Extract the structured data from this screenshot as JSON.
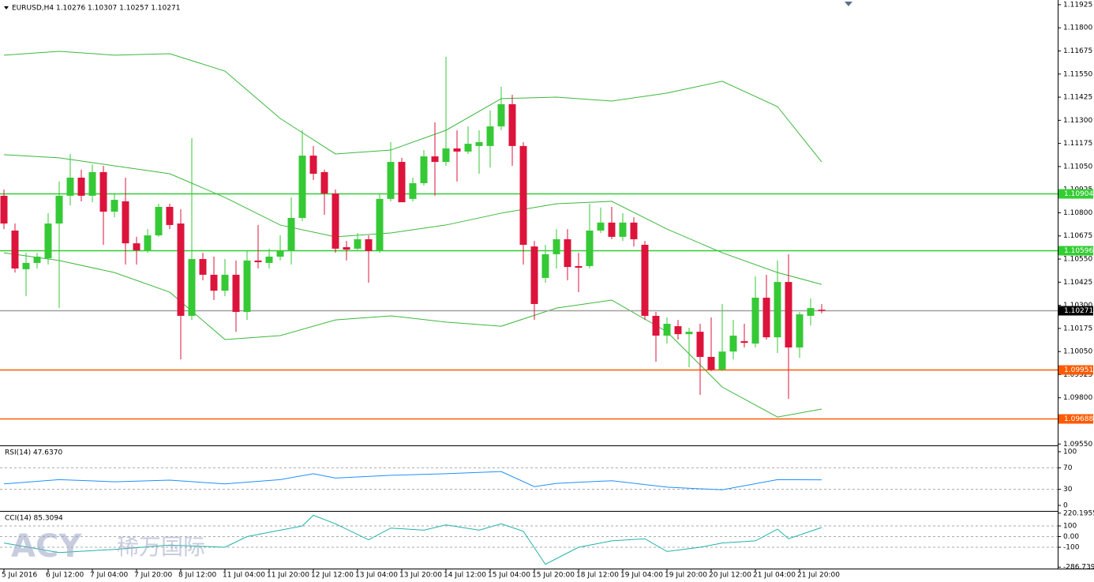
{
  "chart_data": [
    {
      "type": "candlestick",
      "title": "EURUSD,H4  1.10276 1.10307 1.10257 1.10271",
      "categories": [
        "5 Jul 2016",
        null,
        null,
        null,
        "6 Jul 12:00",
        null,
        null,
        null,
        "7 Jul 04:00",
        null,
        null,
        null,
        "7 Jul 20:00",
        null,
        null,
        null,
        "8 Jul 12:00",
        null,
        null,
        null,
        "11 Jul 04:00",
        null,
        null,
        null,
        "11 Jul 20:00",
        null,
        null,
        null,
        "12 Jul 12:00",
        null,
        null,
        null,
        "13 Jul 04:00",
        null,
        null,
        null,
        "13 Jul 20:00",
        null,
        null,
        null,
        "14 Jul 12:00",
        null,
        null,
        null,
        "15 Jul 04:00",
        null,
        null,
        null,
        "15 Jul 20:00",
        null,
        null,
        null,
        "18 Jul 12:00",
        null,
        null,
        null,
        "19 Jul 04:00",
        null,
        null,
        null,
        "19 Jul 20:00",
        null,
        null,
        null,
        "20 Jul 12:00",
        null,
        null,
        null,
        "21 Jul 04:00",
        null,
        null,
        null,
        "21 Jul 20:00",
        null,
        null
      ],
      "open": [
        1.10892,
        1.10704,
        1.10495,
        1.10529,
        1.10554,
        1.10742,
        1.10892,
        1.1099,
        1.10892,
        1.1102,
        1.10806,
        1.10862,
        1.10635,
        1.10597,
        1.10678,
        1.10832,
        1.10742,
        1.10243,
        1.1055,
        1.10465,
        1.10379,
        1.10465,
        1.10264,
        1.10542,
        1.10529,
        1.10563,
        1.10593,
        1.10772,
        1.11109,
        1.1102,
        1.10904,
        1.10614,
        1.10606,
        1.10657,
        1.10593,
        1.10875,
        1.11075,
        1.10875,
        1.1096,
        1.11105,
        1.11075,
        1.11148,
        1.11131,
        1.11161,
        1.11161,
        1.11267,
        1.11387,
        1.11161,
        1.10618,
        1.10448,
        1.10576,
        1.10657,
        1.10512,
        1.10512,
        1.10704,
        1.10747,
        1.1067,
        1.10747,
        1.10627,
        1.10243,
        1.10136,
        1.10187,
        1.10144,
        1.10157,
        1.10021,
        1.09952,
        1.1005,
        1.10106,
        1.10093,
        1.10341,
        1.10127,
        1.10426,
        1.10072,
        1.10243,
        1.10276
      ],
      "high": [
        1.10926,
        1.10742,
        1.10584,
        1.10584,
        1.10798,
        1.10969,
        1.11118,
        1.11033,
        1.11062,
        1.11054,
        1.10904,
        1.1099,
        1.1067,
        1.10712,
        1.10849,
        1.10849,
        1.10819,
        1.11203,
        1.10584,
        1.10563,
        1.1055,
        1.10542,
        1.10593,
        1.10734,
        1.10606,
        1.10678,
        1.10883,
        1.11246,
        1.11161,
        1.11033,
        1.10926,
        1.10648,
        1.10691,
        1.10678,
        1.10904,
        1.11182,
        1.11097,
        1.1099,
        1.11139,
        1.11289,
        1.11643,
        1.11246,
        1.11267,
        1.11246,
        1.11353,
        1.11481,
        1.11438,
        1.11182,
        1.10648,
        1.10627,
        1.10712,
        1.10712,
        1.10584,
        1.10849,
        1.10828,
        1.10832,
        1.10798,
        1.10776,
        1.10648,
        1.10264,
        1.10234,
        1.10221,
        1.10179,
        1.102,
        1.10234,
        1.10307,
        1.10221,
        1.102,
        1.10456,
        1.10465,
        1.10542,
        1.10576,
        1.10264,
        1.10337,
        1.10307
      ],
      "low": [
        1.10712,
        1.10477,
        1.10349,
        1.10499,
        1.1052,
        1.10285,
        1.1084,
        1.10862,
        1.10857,
        1.10627,
        1.10776,
        1.1052,
        1.1052,
        1.10584,
        1.1067,
        1.10712,
        1.10008,
        1.10221,
        1.10435,
        1.10328,
        1.10349,
        1.10157,
        1.10221,
        1.10499,
        1.10499,
        1.10542,
        1.1052,
        1.10755,
        1.10977,
        1.10789,
        1.10584,
        1.10542,
        1.10593,
        1.10422,
        1.10584,
        1.10862,
        1.10862,
        1.10862,
        1.10947,
        1.10892,
        1.11054,
        1.10969,
        1.11118,
        1.11011,
        1.11045,
        1.11246,
        1.11054,
        1.1052,
        1.10221,
        1.10422,
        1.10499,
        1.10435,
        1.10371,
        1.10499,
        1.10691,
        1.10657,
        1.10648,
        1.10618,
        1.10221,
        1.09995,
        1.10093,
        1.10115,
        1.09965,
        1.09816,
        1.09944,
        1.09944,
        1.10008,
        1.10072,
        1.10072,
        1.10115,
        1.10042,
        1.09794,
        1.10016,
        1.10191,
        1.10257
      ],
      "close": [
        1.10742,
        1.10499,
        1.10529,
        1.10563,
        1.10742,
        1.10892,
        1.1099,
        1.10892,
        1.1102,
        1.10806,
        1.1087,
        1.10635,
        1.10597,
        1.10678,
        1.10832,
        1.10734,
        1.10243,
        1.1055,
        1.10465,
        1.10379,
        1.10465,
        1.10264,
        1.10542,
        1.10533,
        1.10563,
        1.10593,
        1.10772,
        1.11109,
        1.11011,
        1.10904,
        1.10606,
        1.10601,
        1.10657,
        1.10593,
        1.10875,
        1.11075,
        1.10857,
        1.1096,
        1.11105,
        1.11075,
        1.11148,
        1.11131,
        1.11173,
        1.11182,
        1.11267,
        1.11387,
        1.11161,
        1.10627,
        1.10307,
        1.10576,
        1.10657,
        1.10507,
        1.10503,
        1.10704,
        1.10747,
        1.1067,
        1.10747,
        1.10657,
        1.10243,
        1.10136,
        1.102,
        1.10144,
        1.10157,
        1.10021,
        1.09952,
        1.1005,
        1.10136,
        1.10097,
        1.10341,
        1.10127,
        1.10426,
        1.10072,
        1.10251,
        1.10285,
        1.10271
      ],
      "up_color": "#36c936",
      "down_color": "#dc143c",
      "bands": {
        "color": "#3cb83c",
        "x": [
          0,
          5,
          10,
          15,
          20,
          25,
          30,
          35,
          40,
          45,
          50,
          55,
          60,
          65,
          70,
          74
        ],
        "upper": [
          1.11652,
          1.11673,
          1.11652,
          1.1166,
          1.11566,
          1.1131,
          1.11118,
          1.11139,
          1.11246,
          1.11417,
          1.11425,
          1.11404,
          1.11447,
          1.11511,
          1.11374,
          1.11075
        ],
        "middle": [
          1.11114,
          1.11097,
          1.11054,
          1.11011,
          1.10883,
          1.10734,
          1.1067,
          1.10691,
          1.10734,
          1.10798,
          1.10849,
          1.10862,
          1.10712,
          1.10584,
          1.10477,
          1.10413
        ],
        "lower": [
          1.10584,
          1.10542,
          1.10477,
          1.10371,
          1.10115,
          1.10136,
          1.10221,
          1.10243,
          1.10209,
          1.10187,
          1.10285,
          1.10328,
          1.10157,
          1.09858,
          1.09696,
          1.09739
        ]
      },
      "levels": [
        {
          "value": 1.10904,
          "color": "#32cd32",
          "label_color": "#32cd32"
        },
        {
          "value": 1.10596,
          "color": "#32cd32",
          "label_color": "#32cd32"
        },
        {
          "value": 1.10271,
          "color": "#a0a0a0",
          "label_color": "#000000"
        },
        {
          "value": 1.09951,
          "color": "#ff5a00",
          "label_color": "#ff5a00"
        },
        {
          "value": 1.09688,
          "color": "#ff5a00",
          "label_color": "#ff5a00"
        }
      ],
      "ylim": [
        1.09547,
        1.11946
      ],
      "yticks": [
        1.11925,
        {
          "value": 1.118,
          "label": "1.11800"
        },
        1.11675,
        {
          "value": 1.1155,
          "label": "1.11550"
        },
        1.11425,
        {
          "value": 1.113,
          "label": "1.11300"
        },
        1.11175,
        {
          "value": 1.1105,
          "label": "1.11050"
        },
        1.10925,
        {
          "value": 1.108,
          "label": "1.10800"
        },
        1.10675,
        {
          "value": 1.1055,
          "label": "1.10550"
        },
        1.10425,
        {
          "value": 1.103,
          "label": "1.10300"
        },
        1.10175,
        {
          "value": 1.1005,
          "label": "1.10050"
        },
        1.09925,
        {
          "value": 1.098,
          "label": "1.09800"
        },
        1.09675,
        {
          "value": 1.0955,
          "label": "1.09550"
        }
      ],
      "grid": false,
      "watermark": [
        "ACY",
        "稀万国际"
      ]
    },
    {
      "type": "line",
      "title": "RSI(14) 47.6370",
      "color": "#1e90ff",
      "x": [
        0,
        5,
        10,
        15,
        20,
        25,
        28,
        30,
        35,
        40,
        45,
        48,
        50,
        55,
        60,
        65,
        70,
        74
      ],
      "values": [
        40,
        48,
        44,
        47,
        40,
        48,
        59,
        51,
        56,
        59,
        63,
        35,
        41,
        46,
        34,
        29,
        48,
        47.637
      ],
      "ylim": [
        -8.8,
        108.8
      ],
      "yticks": [
        0,
        30,
        70,
        100
      ],
      "grid": true
    },
    {
      "type": "line",
      "title": "CCI(14) 85.3094",
      "color": "#20b2aa",
      "x": [
        0,
        5,
        10,
        15,
        20,
        22,
        25,
        27,
        28,
        30,
        33,
        35,
        38,
        40,
        43,
        45,
        47,
        49,
        52,
        55,
        58,
        60,
        63,
        65,
        68,
        70,
        71,
        74
      ],
      "values": [
        -60,
        -150,
        -120,
        -80,
        -100,
        0,
        60,
        100,
        200,
        120,
        -30,
        80,
        60,
        110,
        60,
        120,
        50,
        -260,
        -100,
        -40,
        -20,
        -140,
        -100,
        -60,
        -40,
        70,
        -20,
        85.3094
      ],
      "ylim": [
        -292.6,
        226
      ],
      "yticks": [
        -286.7395,
        -100,
        {
          "value": 0,
          "label": "0.00"
        },
        100,
        220.1955
      ],
      "grid": true
    }
  ]
}
